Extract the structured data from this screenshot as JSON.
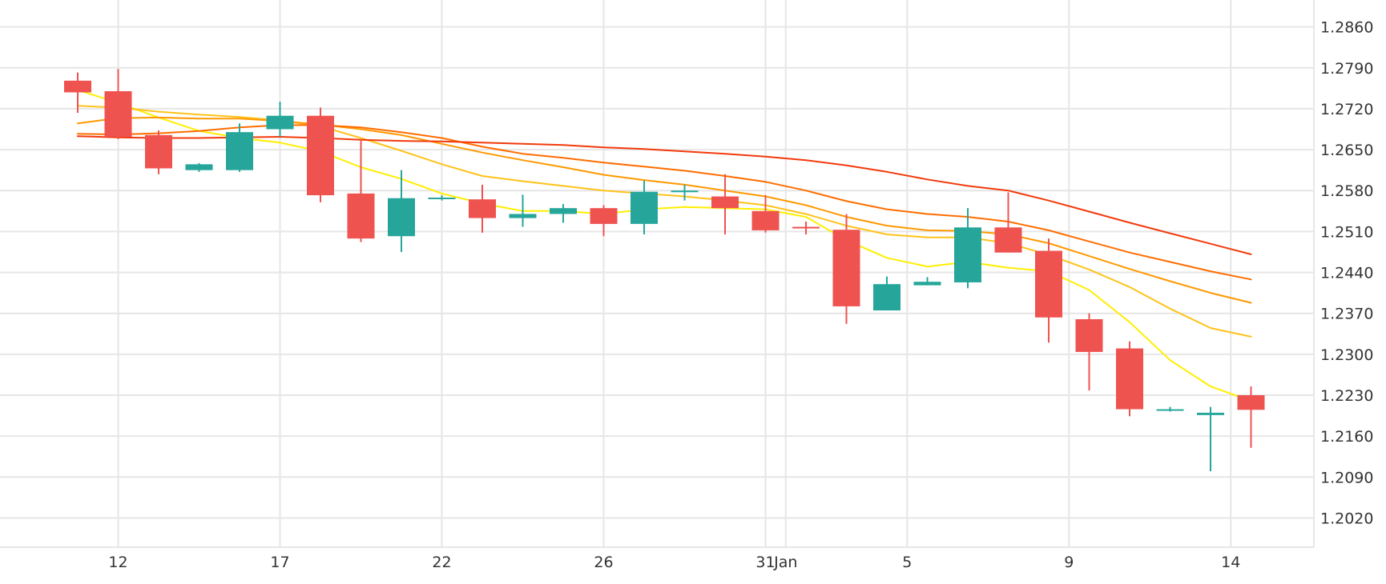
{
  "colors": {
    "up": "#26a69a",
    "down": "#ef5350",
    "grid": "#e6e6e6",
    "text": "#333333",
    "background": "#ffffff"
  },
  "chart_data": {
    "type": "candlestick",
    "title": "",
    "xlabel": "",
    "ylabel": "",
    "y_axis_position": "right",
    "grid": true,
    "legend": "none",
    "ylim": [
      1.197,
      1.2906
    ],
    "y_ticks": [
      "1.2860",
      "1.2790",
      "1.2720",
      "1.2650",
      "1.2580",
      "1.2510",
      "1.2440",
      "1.2370",
      "1.2300",
      "1.2230",
      "1.2160",
      "1.2090",
      "1.2020"
    ],
    "x_ticks": [
      {
        "label": "12",
        "index": 1
      },
      {
        "label": "17",
        "index": 5
      },
      {
        "label": "22",
        "index": 9
      },
      {
        "label": "26",
        "index": 13
      },
      {
        "label": "31",
        "index": 17
      },
      {
        "label": "Jan",
        "index": 17.5
      },
      {
        "label": "5",
        "index": 20.5
      },
      {
        "label": "9",
        "index": 24.5
      },
      {
        "label": "14",
        "index": 28.5
      }
    ],
    "candles": [
      {
        "open": 1.2768,
        "high": 1.2782,
        "low": 1.2713,
        "close": 1.2748
      },
      {
        "open": 1.275,
        "high": 1.2788,
        "low": 1.2668,
        "close": 1.2672
      },
      {
        "open": 1.2675,
        "high": 1.2683,
        "low": 1.2608,
        "close": 1.2618
      },
      {
        "open": 1.2615,
        "high": 1.2627,
        "low": 1.2612,
        "close": 1.2625
      },
      {
        "open": 1.2615,
        "high": 1.2695,
        "low": 1.2612,
        "close": 1.268
      },
      {
        "open": 1.2685,
        "high": 1.2732,
        "low": 1.2672,
        "close": 1.2708
      },
      {
        "open": 1.2708,
        "high": 1.2722,
        "low": 1.256,
        "close": 1.2572
      },
      {
        "open": 1.2575,
        "high": 1.2665,
        "low": 1.2492,
        "close": 1.2498
      },
      {
        "open": 1.2502,
        "high": 1.2615,
        "low": 1.2475,
        "close": 1.2567
      },
      {
        "open": 1.2567,
        "high": 1.2572,
        "low": 1.2563,
        "close": 1.2568
      },
      {
        "open": 1.2565,
        "high": 1.259,
        "low": 1.2508,
        "close": 1.2533
      },
      {
        "open": 1.2533,
        "high": 1.2573,
        "low": 1.2518,
        "close": 1.254
      },
      {
        "open": 1.254,
        "high": 1.2557,
        "low": 1.2525,
        "close": 1.255
      },
      {
        "open": 1.255,
        "high": 1.2555,
        "low": 1.2502,
        "close": 1.2523
      },
      {
        "open": 1.2523,
        "high": 1.2597,
        "low": 1.2505,
        "close": 1.2578
      },
      {
        "open": 1.2578,
        "high": 1.259,
        "low": 1.2563,
        "close": 1.258
      },
      {
        "open": 1.257,
        "high": 1.2608,
        "low": 1.2505,
        "close": 1.255
      },
      {
        "open": 1.2545,
        "high": 1.2572,
        "low": 1.2508,
        "close": 1.2512
      },
      {
        "open": 1.2518,
        "high": 1.2527,
        "low": 1.2505,
        "close": 1.2516
      },
      {
        "open": 1.2513,
        "high": 1.254,
        "low": 1.2352,
        "close": 1.2382
      },
      {
        "open": 1.2375,
        "high": 1.2433,
        "low": 1.2375,
        "close": 1.242
      },
      {
        "open": 1.2418,
        "high": 1.2432,
        "low": 1.2418,
        "close": 1.2424
      },
      {
        "open": 1.2423,
        "high": 1.255,
        "low": 1.2413,
        "close": 1.2517
      },
      {
        "open": 1.2517,
        "high": 1.2577,
        "low": 1.2474,
        "close": 1.2474
      },
      {
        "open": 1.2477,
        "high": 1.2498,
        "low": 1.232,
        "close": 1.2363
      },
      {
        "open": 1.236,
        "high": 1.237,
        "low": 1.2238,
        "close": 1.2304
      },
      {
        "open": 1.231,
        "high": 1.2322,
        "low": 1.2194,
        "close": 1.2206
      },
      {
        "open": 1.2206,
        "high": 1.221,
        "low": 1.2202,
        "close": 1.2206
      },
      {
        "open": 1.2196,
        "high": 1.221,
        "low": 1.21,
        "close": 1.22
      },
      {
        "open": 1.223,
        "high": 1.2245,
        "low": 1.214,
        "close": 1.2205
      }
    ],
    "moving_averages": [
      {
        "color": "#ffee00",
        "values": [
          1.2752,
          1.273,
          1.2705,
          1.2682,
          1.267,
          1.2662,
          1.2647,
          1.262,
          1.26,
          1.2575,
          1.2558,
          1.2545,
          1.2545,
          1.254,
          1.2548,
          1.2552,
          1.255,
          1.2548,
          1.2535,
          1.2495,
          1.2465,
          1.245,
          1.2458,
          1.2448,
          1.2442,
          1.241,
          1.2355,
          1.229,
          1.2245,
          1.222
        ]
      },
      {
        "color": "#ffc21a",
        "values": [
          1.2725,
          1.2722,
          1.2715,
          1.271,
          1.2706,
          1.27,
          1.269,
          1.267,
          1.2648,
          1.2625,
          1.2605,
          1.2596,
          1.2588,
          1.258,
          1.2575,
          1.257,
          1.2563,
          1.2555,
          1.254,
          1.252,
          1.2505,
          1.25,
          1.25,
          1.249,
          1.247,
          1.2445,
          1.2415,
          1.2378,
          1.2345,
          1.233
        ]
      },
      {
        "color": "#ff9800",
        "values": [
          1.2695,
          1.2704,
          1.2705,
          1.2703,
          1.2703,
          1.2699,
          1.2693,
          1.2685,
          1.2675,
          1.266,
          1.2645,
          1.2632,
          1.262,
          1.2607,
          1.2598,
          1.259,
          1.258,
          1.257,
          1.2555,
          1.2535,
          1.252,
          1.2512,
          1.2511,
          1.2505,
          1.249,
          1.2468,
          1.2446,
          1.2425,
          1.2405,
          1.2388
        ]
      },
      {
        "color": "#ff6d00",
        "values": [
          1.2677,
          1.2676,
          1.2678,
          1.2682,
          1.2688,
          1.2692,
          1.2692,
          1.2688,
          1.268,
          1.267,
          1.2655,
          1.2643,
          1.2636,
          1.2628,
          1.2621,
          1.2614,
          1.2605,
          1.2595,
          1.258,
          1.2562,
          1.2548,
          1.254,
          1.2535,
          1.2527,
          1.2512,
          1.2493,
          1.2474,
          1.2458,
          1.2442,
          1.2428
        ]
      },
      {
        "color": "#f23a0c",
        "values": [
          1.2673,
          1.2671,
          1.267,
          1.267,
          1.2671,
          1.2672,
          1.267,
          1.2667,
          1.2665,
          1.2664,
          1.2662,
          1.266,
          1.2658,
          1.2654,
          1.2651,
          1.2647,
          1.2643,
          1.2638,
          1.2632,
          1.2623,
          1.2612,
          1.2599,
          1.2588,
          1.258,
          1.2563,
          1.2544,
          1.2525,
          1.2507,
          1.2489,
          1.2471
        ]
      }
    ]
  }
}
